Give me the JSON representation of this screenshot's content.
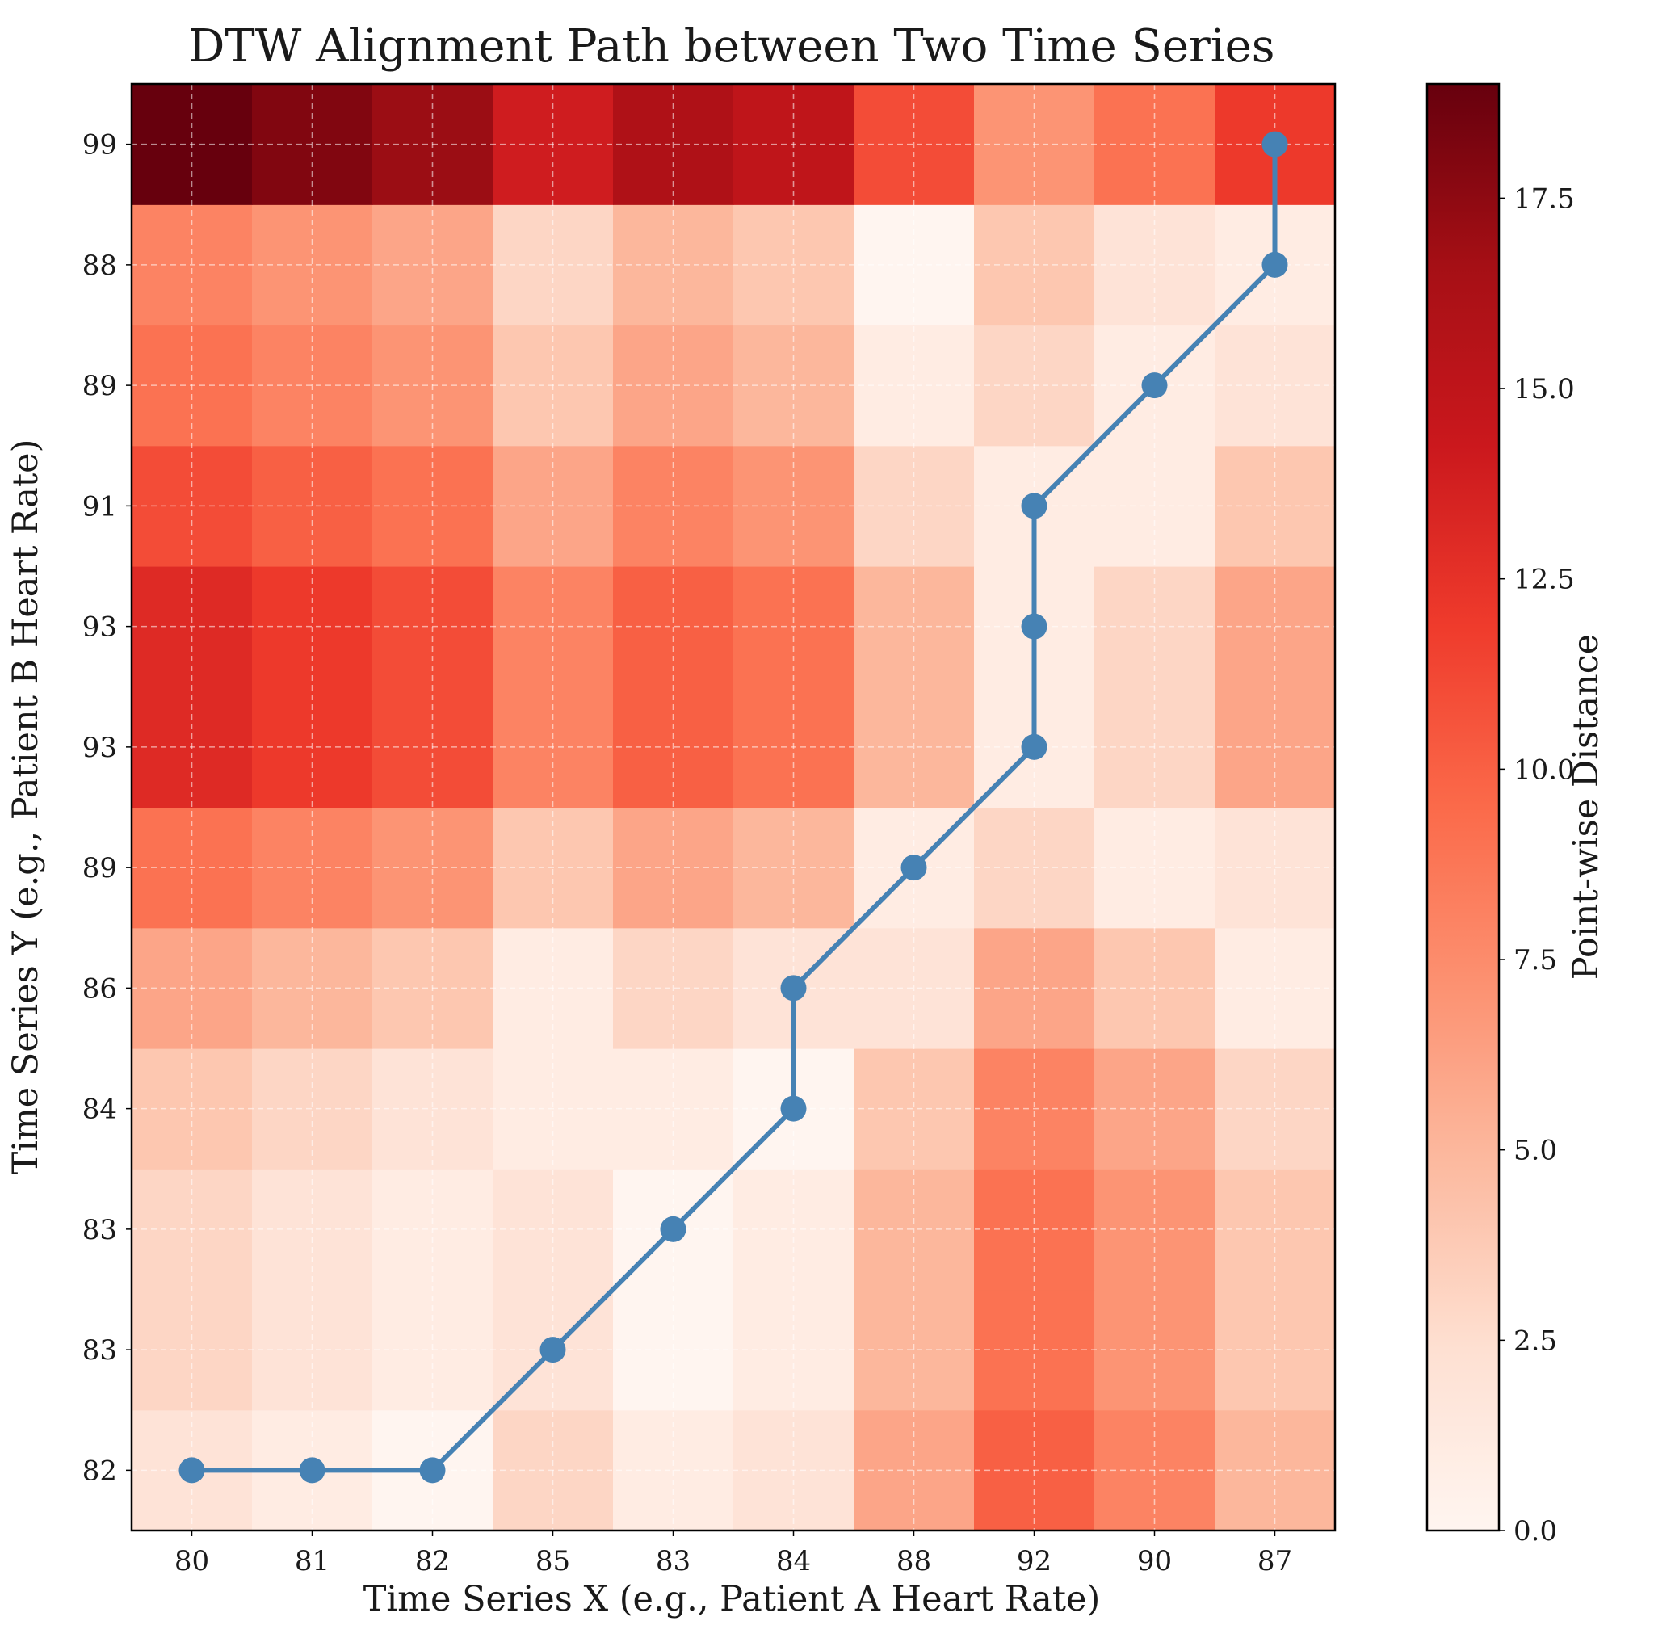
{
  "chart_data": {
    "type": "heatmap",
    "title": "DTW Alignment Path between Two Time Series",
    "xlabel": "Time Series X (e.g., Patient A Heart Rate)",
    "ylabel": "Time Series Y (e.g., Patient B Heart Rate)",
    "x_series": [
      80,
      81,
      82,
      85,
      83,
      84,
      88,
      92,
      90,
      87
    ],
    "y_series": [
      82,
      83,
      83,
      84,
      86,
      89,
      93,
      93,
      91,
      89,
      88,
      99
    ],
    "cell_value_rule": "abs(x_i - y_j)",
    "colormap": "Reds",
    "colorbar": {
      "label": "Point-wise Distance",
      "range": [
        0,
        19
      ],
      "ticks": [
        "0.0",
        "2.5",
        "5.0",
        "7.5",
        "10.0",
        "12.5",
        "15.0",
        "17.5"
      ]
    },
    "path_color": "#4682b4",
    "path": [
      [
        0,
        0
      ],
      [
        1,
        0
      ],
      [
        2,
        0
      ],
      [
        3,
        1
      ],
      [
        4,
        2
      ],
      [
        5,
        3
      ],
      [
        5,
        4
      ],
      [
        6,
        5
      ],
      [
        7,
        6
      ],
      [
        7,
        7
      ],
      [
        7,
        8
      ],
      [
        8,
        9
      ],
      [
        9,
        10
      ],
      [
        9,
        11
      ]
    ],
    "grid": true
  }
}
